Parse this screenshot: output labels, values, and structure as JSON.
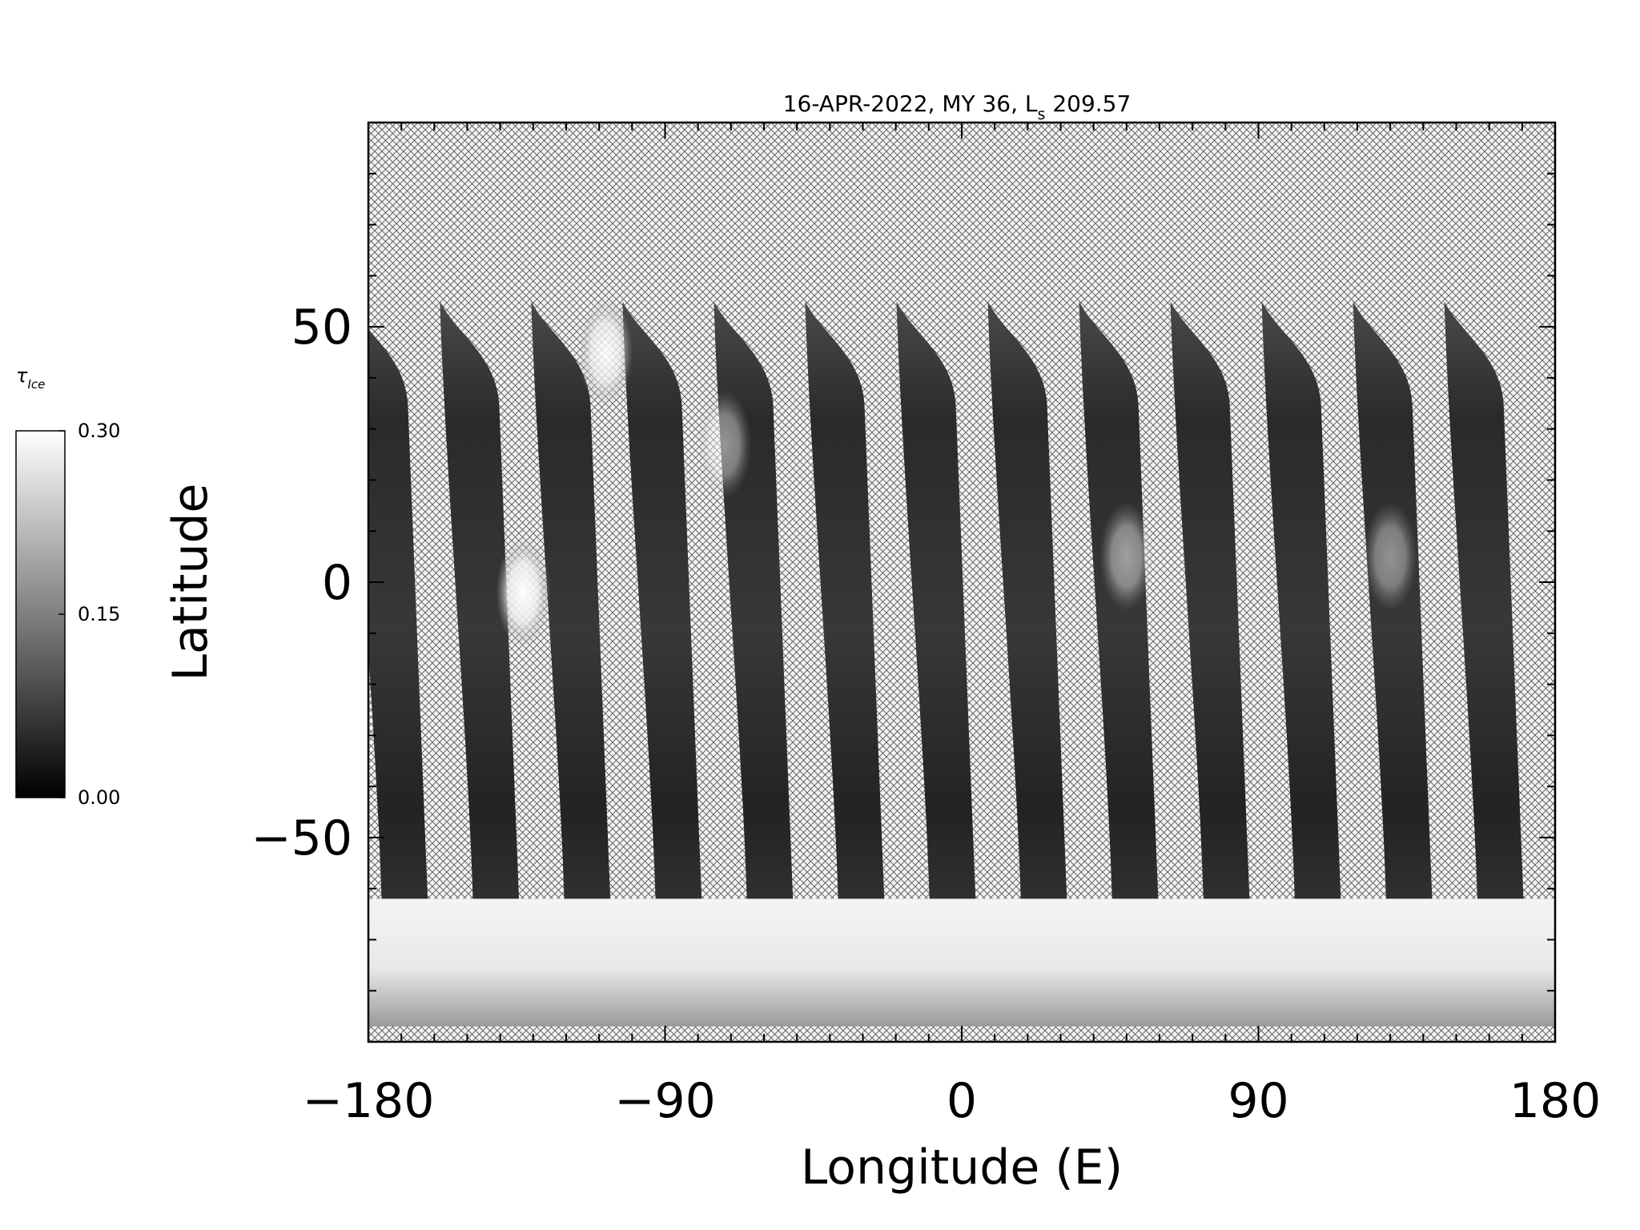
{
  "chart_data": {
    "type": "heatmap",
    "title": "16-APR-2022, MY 36,  L",
    "title_sub": "s",
    "title_tail": " 209.57",
    "xlabel": "Longitude (E)",
    "ylabel": "Latitude",
    "xlim": [
      -180,
      180
    ],
    "ylim": [
      -90,
      90
    ],
    "x_ticks": [
      -180,
      -90,
      0,
      90,
      180
    ],
    "x_tick_labels": [
      "−180",
      "−90",
      "0",
      "90",
      "180"
    ],
    "y_ticks": [
      -50,
      0,
      50
    ],
    "y_tick_labels": [
      "−50",
      "0",
      "50"
    ],
    "colorbar": {
      "label": "τ",
      "label_sub": "Ice",
      "min": 0.0,
      "mid": 0.15,
      "max": 0.3,
      "tick_labels": [
        "0.00",
        "0.15",
        "0.30"
      ],
      "colors": [
        "#000000",
        "#ffffff"
      ]
    },
    "swath": {
      "count": 13,
      "first_center_lon": -174,
      "spacing_lon": 27.7,
      "width_lon": 14,
      "lat_north": 55,
      "lat_south": -62,
      "slant_lon": 10
    },
    "no_data_pattern": "crosshatch",
    "bright_features": [
      {
        "lon": -133,
        "lat": -2,
        "value": 0.3
      },
      {
        "lon": -108,
        "lat": 45,
        "value": 0.26
      },
      {
        "lon": -72,
        "lat": 27,
        "value": 0.15
      },
      {
        "lon": 50,
        "lat": 5,
        "value": 0.16
      },
      {
        "lon": 130,
        "lat": 5,
        "value": 0.14
      }
    ],
    "south_polar_cap": {
      "lat_top": -62,
      "lat_bottom": -87,
      "value": 0.28
    }
  }
}
